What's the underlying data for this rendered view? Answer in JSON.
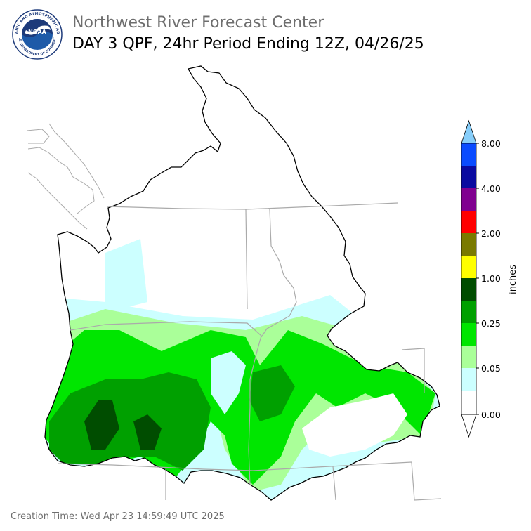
{
  "header": {
    "agency": "Northwest River Forecast Center",
    "product": "DAY 3 QPF, 24hr Period Ending 12Z, 04/26/25",
    "logo": {
      "center_text": "NOAA",
      "ring_text": "NATIONAL OCEANIC AND ATMOSPHERIC ADMINISTRATION",
      "ring_text_bottom": "U.S. DEPARTMENT OF COMMERCE"
    }
  },
  "legend": {
    "unit_label": "inches",
    "tick_labels": [
      "8.00",
      "4.00",
      "2.00",
      "1.00",
      "0.25",
      "0.05",
      "0.00"
    ],
    "colors": {
      "top_arrow": "#87cefa",
      "bands_top_to_bottom": [
        "#0a4bff",
        "#0a0aa0",
        "#800090",
        "#ff0000",
        "#7a7a00",
        "#ffff00",
        "#004d00",
        "#00a000",
        "#00e600",
        "#aaff99",
        "#ccffff",
        "#ffffff"
      ]
    }
  },
  "map": {
    "region": "Pacific Northwest / Columbia River basin",
    "colors": {
      "basin_outline": "#000000",
      "state_lines": "#aaaaaa",
      "light_cyan": "#ccffff",
      "light_green": "#aaff99",
      "green": "#00e600",
      "medium_green": "#00a000",
      "dark_green": "#004d00"
    }
  },
  "footer": {
    "creation_time": "Creation Time: Wed Apr 23 14:59:49 UTC 2025"
  }
}
